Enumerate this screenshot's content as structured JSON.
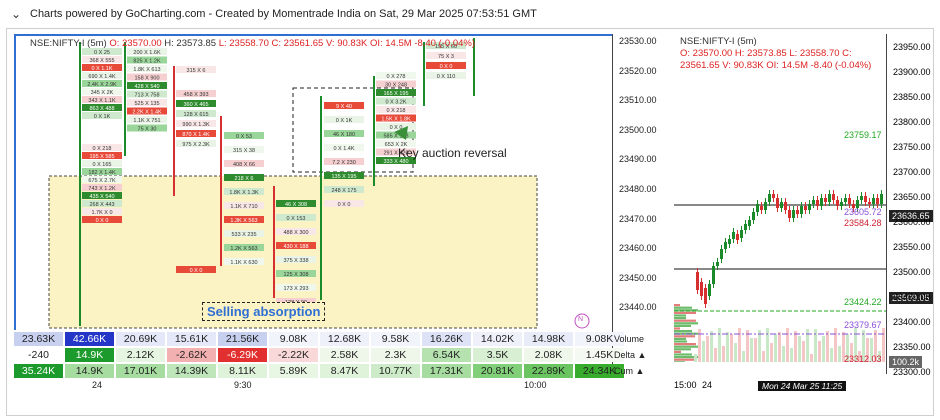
{
  "topbar": {
    "text": "Charts powered by GoCharting.com - Created by Momentrade India on Sat, 29 Mar 2025 07:53:51 GMT"
  },
  "left": {
    "header": {
      "symbol": "NSE:NIFTY-I (5m)",
      "o": "O: 23570.00",
      "h": "H: 23573.85",
      "l": "L: 23558.70",
      "c": "C: 23561.65",
      "v": "V: 90.83K",
      "oi": "OI: 14.5M",
      "chg": "-8.40 (-0.04%)"
    },
    "axis_ticks": [
      "23530.00",
      "23520.00",
      "23510.00",
      "23500.00",
      "23490.00",
      "23480.00",
      "23470.00",
      "23460.00",
      "23450.00",
      "23440.00"
    ],
    "annotations": {
      "key_auction": "Key auction reversal",
      "selling": "Selling absorption",
      "marker": "N"
    },
    "stats": {
      "labels": [
        "Volume",
        "Delta ▲",
        "Cum ▲"
      ],
      "volume": [
        "23.63K",
        "42.66K",
        "20.69K",
        "15.61K",
        "21.56K",
        "9.08K",
        "12.68K",
        "9.58K",
        "16.26K",
        "14.02K",
        "14.98K",
        "9.08K"
      ],
      "delta": [
        "-240",
        "14.9K",
        "2.12K",
        "-2.62K",
        "-6.29K",
        "-2.22K",
        "2.58K",
        "2.3K",
        "6.54K",
        "3.5K",
        "2.08K",
        "1.45K"
      ],
      "cum": [
        "35.24K",
        "14.9K",
        "17.01K",
        "14.39K",
        "8.11K",
        "5.89K",
        "8.47K",
        "10.77K",
        "17.31K",
        "20.81K",
        "22.89K",
        "24.34K"
      ]
    },
    "time_labels": [
      "24",
      "9:30",
      "10:00"
    ],
    "footprint_labels": {
      "c0": [
        "0 X 25",
        "368 X 555",
        "0 X 1.1K",
        "690 X 1.4K",
        "2.4K X 2.9K",
        "345 X 2K",
        "343 X 1.1K",
        "863 X 488",
        "0 X 1K",
        "0 X 218",
        "195 X 585",
        "0 X 165",
        "182 X 1.4K",
        "675 X 2.7K",
        "743 X 1.2K",
        "435 X 540",
        "268 X 443",
        "1.7K X 0",
        "0 X 0"
      ],
      "c1": [
        "200 X 1.6K",
        "825 X 1.2K",
        "1.8K X 613",
        "158 X 900",
        "428 X 540",
        "713 X 758",
        "525 X 135",
        "2.2K X 1.4K",
        "1.1K X 751",
        "75 X 30"
      ],
      "c2": [
        "458 X 393",
        "360 X 465",
        "128 X 615",
        "990 X 1.3K",
        "870 X 1.4K",
        "975 X 2.3K"
      ],
      "c3": [
        "315 X 6",
        "0 X 0"
      ],
      "c4": [
        "0 X 53",
        "315 X 38",
        "408 X 66",
        "218 X 6",
        "1.8K X 1.3K",
        "1.1K X 710",
        "1.3K X 563",
        "533 X 235",
        "1.2K X 563",
        "1.1K X 630"
      ],
      "c5": [
        "46 X 308",
        "0 X 153",
        "488 X 300",
        "430 X 188",
        "375 X 338",
        "125 X 308",
        "173 X 293",
        "128 X 90",
        "0 X 0"
      ],
      "c6": [
        "9 X 40",
        "0 X 1K",
        "46 X 180",
        "0 X 1.4K",
        "7.2 X 230",
        "135 X 195",
        "248 X 175",
        "0 X 0"
      ],
      "c7": [
        "0 X 278",
        "30 X 248",
        "165 X 195",
        "0 X 3.2K",
        "0 X 218",
        "1.5K X 1.8K",
        "0 X 0",
        "585 X 193",
        "653 X 2K",
        "291 X 420",
        "333 X 480"
      ],
      "c8": [
        "195 X 60",
        "75 X 3",
        "0 X 0",
        "0 X 110"
      ]
    }
  },
  "right": {
    "header": {
      "symbol": "NSE:NIFTY-I (5m)",
      "line2": "O: 23570.00  H: 23573.85  L: 23558.70  C:",
      "line3": "23561.65  V: 90.83K  OI: 14.5M  -8.40  (-0.04%)"
    },
    "axis_ticks": [
      "23950.00",
      "23900.00",
      "23850.00",
      "23800.00",
      "23750.00",
      "23700.00",
      "23650.00",
      "23600.00",
      "23550.00",
      "23500.00",
      "23450.00",
      "23400.00",
      "23350.00",
      "23300.00"
    ],
    "levels": {
      "l1": "23759.17",
      "l2": "23605.72",
      "l3": "23584.28",
      "l4": "23424.22",
      "l5": "23379.67",
      "l6": "23312.03"
    },
    "tags": {
      "price": "23636.65",
      "support": "23509.05",
      "vol": "100.2k"
    },
    "time_labels": [
      "15:00",
      "24"
    ],
    "cursor_label": "Mon 24 Mar 25  11:25",
    "colors": {
      "up": "#1b8a2b",
      "down": "#d62f2f",
      "level_green": "#22aa22",
      "level_purple": "#8a4fd8",
      "level_red": "#cc2233"
    }
  }
}
